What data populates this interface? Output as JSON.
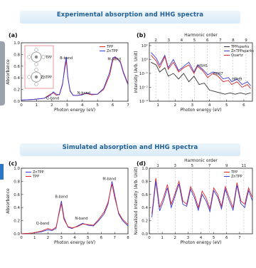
{
  "banners": {
    "top": "Experimental absorption and HHG spectra",
    "bottom": "Simulated absorption and HHG spectra"
  },
  "colors": {
    "red": "#d62728",
    "blue": "#3b3bd6",
    "black": "#333333",
    "banner_text": "#1f5f96"
  },
  "chart_data": [
    {
      "panel": "(a)",
      "type": "line",
      "xlabel": "Photon energy (eV)",
      "ylabel": "Absorbance",
      "xlim": [
        0,
        7
      ],
      "ylim": [
        0,
        1.0
      ],
      "xticks": [
        0,
        1,
        2,
        3,
        4,
        5,
        6,
        7
      ],
      "yticks": [
        0,
        0.2,
        0.4,
        0.6,
        0.8,
        1.0
      ],
      "grid": false,
      "legend_position": "top-right",
      "annotations": [
        {
          "text": "B-band",
          "x": 2.95,
          "y": 0.72
        },
        {
          "text": "Q-band",
          "x": 2.05,
          "y": 0.03
        },
        {
          "text": "N-band",
          "x": 4.1,
          "y": 0.12
        },
        {
          "text": "M-band",
          "x": 6.1,
          "y": 0.7
        }
      ],
      "inset_labels": [
        "TPP",
        "ZnTPP"
      ],
      "series": [
        {
          "name": "TPP",
          "color": "red",
          "x": [
            0,
            0.8,
            1.5,
            1.9,
            2.1,
            2.3,
            2.5,
            2.7,
            2.85,
            2.95,
            3.05,
            3.2,
            3.4,
            3.7,
            4.0,
            4.3,
            4.6,
            5.0,
            5.4,
            5.8,
            6.0,
            6.15,
            6.3,
            6.5,
            6.7,
            7.0
          ],
          "y": [
            0.02,
            0.03,
            0.05,
            0.12,
            0.14,
            0.1,
            0.12,
            0.3,
            0.55,
            0.7,
            0.4,
            0.18,
            0.1,
            0.1,
            0.12,
            0.13,
            0.11,
            0.12,
            0.2,
            0.45,
            0.7,
            0.75,
            0.72,
            0.68,
            0.5,
            0.3
          ]
        },
        {
          "name": "ZnTPP",
          "color": "blue",
          "x": [
            0,
            0.8,
            1.5,
            1.9,
            2.1,
            2.3,
            2.5,
            2.7,
            2.85,
            2.95,
            3.05,
            3.2,
            3.4,
            3.7,
            4.0,
            4.3,
            4.6,
            5.0,
            5.4,
            5.8,
            6.0,
            6.15,
            6.3,
            6.5,
            6.7,
            7.0
          ],
          "y": [
            0.02,
            0.03,
            0.05,
            0.1,
            0.16,
            0.12,
            0.11,
            0.28,
            0.6,
            0.76,
            0.42,
            0.17,
            0.1,
            0.1,
            0.11,
            0.14,
            0.12,
            0.12,
            0.22,
            0.5,
            0.74,
            0.76,
            0.73,
            0.66,
            0.48,
            0.28
          ]
        }
      ]
    },
    {
      "panel": "(b)",
      "type": "line",
      "top_axis_label": "Harmonic order",
      "top_ticks": [
        2,
        3,
        4,
        5,
        6,
        7,
        8,
        9
      ],
      "xlabel": "Photon energy (eV)",
      "ylabel": "Intensity (Arb. Unit)",
      "xlim": [
        0.5,
        6.5
      ],
      "ylim_log10": [
        -3,
        1.2
      ],
      "xticks": [
        1,
        2,
        3,
        4,
        5,
        6
      ],
      "yticks_labels": [
        "10⁻³",
        "10⁻²",
        "10⁻¹",
        "10⁰",
        "10¹"
      ],
      "yticks_log10": [
        -3,
        -2,
        -1,
        0,
        1
      ],
      "legend_position": "top-right",
      "annotations": [
        {
          "text": "H5H5",
          "x": 3.6,
          "y_log10": -0.55
        },
        {
          "text": "H6H7",
          "x": 4.5,
          "y_log10": -1.1
        },
        {
          "text": "H8H9",
          "x": 5.6,
          "y_log10": -1.5
        }
      ],
      "series": [
        {
          "name": "TPPsparks",
          "color": "black",
          "x": [
            0.6,
            0.9,
            1.1,
            1.4,
            1.6,
            1.9,
            2.2,
            2.5,
            2.8,
            3.1,
            3.4,
            3.7,
            4.0,
            4.3,
            4.6,
            4.9,
            5.2,
            5.5,
            5.8,
            6.1,
            6.4
          ],
          "y_log10": [
            -0.2,
            -0.4,
            -0.9,
            -0.6,
            -1.2,
            -1.0,
            -1.4,
            -1.0,
            -1.6,
            -1.2,
            -1.8,
            -1.7,
            -2.2,
            -2.3,
            -2.4,
            -2.5,
            -2.4,
            -2.5,
            -2.4,
            -2.5,
            -2.4
          ]
        },
        {
          "name": "ZnTPPsparks",
          "color": "blue",
          "x": [
            0.6,
            0.9,
            1.1,
            1.4,
            1.6,
            1.9,
            2.2,
            2.5,
            2.8,
            3.1,
            3.3,
            3.6,
            3.9,
            4.2,
            4.5,
            4.8,
            5.1,
            5.3,
            5.6,
            5.9,
            6.2,
            6.4
          ],
          "y_log10": [
            0.5,
            0.1,
            -0.4,
            0.3,
            -0.6,
            0.0,
            -0.8,
            -0.5,
            -0.2,
            -0.9,
            -0.4,
            -0.7,
            -1.1,
            -0.9,
            -1.0,
            -1.4,
            -1.3,
            -1.6,
            -1.4,
            -1.8,
            -1.6,
            -1.9
          ]
        },
        {
          "name": "Quartz",
          "color": "red",
          "x": [
            0.6,
            0.9,
            1.1,
            1.4,
            1.6,
            1.9,
            2.2,
            2.5,
            2.8,
            3.1,
            3.3,
            3.6,
            3.9,
            4.2,
            4.5,
            4.8,
            5.1,
            5.3,
            5.6,
            5.9,
            6.2,
            6.4
          ],
          "y_log10": [
            0.3,
            -0.1,
            -0.6,
            0.2,
            -0.7,
            -0.2,
            -0.9,
            -0.6,
            -0.4,
            -1.0,
            -0.5,
            -0.8,
            -1.3,
            -1.0,
            -1.2,
            -1.6,
            -1.5,
            -1.8,
            -1.6,
            -2.0,
            -1.8,
            -2.1
          ]
        }
      ]
    },
    {
      "panel": "(c)",
      "type": "line",
      "xlabel": "Photon energy (eV)",
      "ylabel": "Absorbance",
      "xlim": [
        0,
        8
      ],
      "ylim": [
        0,
        1.0
      ],
      "xticks": [
        0,
        1,
        2,
        3,
        4,
        5,
        6,
        7,
        8
      ],
      "yticks": [
        0,
        0.2,
        0.4,
        0.6,
        0.8,
        1.0
      ],
      "legend_position": "top-left",
      "annotations": [
        {
          "text": "B-band",
          "x": 3.0,
          "y": 0.55
        },
        {
          "text": "Q-band",
          "x": 1.6,
          "y": 0.14
        },
        {
          "text": "N-band",
          "x": 4.5,
          "y": 0.22
        },
        {
          "text": "M-band",
          "x": 6.6,
          "y": 0.82
        }
      ],
      "series": [
        {
          "name": "ZnTPP",
          "color": "blue",
          "x": [
            0,
            0.8,
            1.5,
            2.0,
            2.3,
            2.6,
            2.8,
            3.0,
            3.2,
            3.5,
            3.8,
            4.2,
            4.6,
            5.0,
            5.4,
            5.8,
            6.2,
            6.5,
            6.8,
            7.0,
            7.3,
            7.6,
            8.0
          ],
          "y": [
            0,
            0.01,
            0.03,
            0.06,
            0.05,
            0.08,
            0.3,
            0.5,
            0.25,
            0.1,
            0.08,
            0.12,
            0.16,
            0.13,
            0.12,
            0.2,
            0.3,
            0.45,
            0.8,
            0.6,
            0.3,
            0.2,
            0.12
          ]
        },
        {
          "name": "TPP",
          "color": "red",
          "x": [
            0,
            0.8,
            1.5,
            2.0,
            2.3,
            2.6,
            2.8,
            3.0,
            3.2,
            3.5,
            3.8,
            4.2,
            4.6,
            5.0,
            5.4,
            5.8,
            6.2,
            6.5,
            6.8,
            7.0,
            7.3,
            7.6,
            8.0
          ],
          "y": [
            0,
            0.01,
            0.04,
            0.08,
            0.06,
            0.1,
            0.28,
            0.46,
            0.22,
            0.11,
            0.09,
            0.11,
            0.15,
            0.14,
            0.13,
            0.22,
            0.33,
            0.48,
            0.76,
            0.55,
            0.32,
            0.22,
            0.14
          ]
        }
      ]
    },
    {
      "panel": "(d)",
      "type": "line",
      "top_axis_label": "Harmonic order",
      "top_ticks": [
        1,
        3,
        5,
        7,
        9,
        11
      ],
      "xlabel": "Photon energy (eV)",
      "ylabel": "Normalized Intensity (Arb. Unit)",
      "xlim": [
        0,
        8
      ],
      "ylim": [
        0,
        1.0
      ],
      "xticks": [
        0,
        1,
        2,
        3,
        4,
        5,
        6,
        7
      ],
      "yticks": [
        0,
        0.2,
        0.4,
        0.6,
        0.8,
        1.0
      ],
      "legend_position": "top-right",
      "series": [
        {
          "name": "TPP",
          "color": "red",
          "x": [
            0.2,
            0.5,
            0.8,
            1.1,
            1.4,
            1.7,
            2.0,
            2.3,
            2.6,
            2.9,
            3.2,
            3.5,
            3.8,
            4.1,
            4.4,
            4.7,
            5.0,
            5.3,
            5.6,
            5.9,
            6.2,
            6.5,
            6.8,
            7.1,
            7.4,
            7.7,
            8.0
          ],
          "y": [
            0.3,
            0.85,
            0.4,
            0.55,
            0.75,
            0.45,
            0.62,
            0.8,
            0.5,
            0.45,
            0.72,
            0.6,
            0.4,
            0.65,
            0.55,
            0.38,
            0.7,
            0.6,
            0.42,
            0.72,
            0.55,
            0.4,
            0.78,
            0.5,
            0.45,
            0.7,
            0.55
          ]
        },
        {
          "name": "ZnTPP",
          "color": "blue",
          "x": [
            0.2,
            0.5,
            0.8,
            1.1,
            1.4,
            1.7,
            2.0,
            2.3,
            2.6,
            2.9,
            3.2,
            3.5,
            3.8,
            4.1,
            4.4,
            4.7,
            5.0,
            5.3,
            5.6,
            5.9,
            6.2,
            6.5,
            6.8,
            7.1,
            7.4,
            7.7,
            8.0
          ],
          "y": [
            0.25,
            0.8,
            0.35,
            0.5,
            0.7,
            0.4,
            0.58,
            0.76,
            0.45,
            0.42,
            0.68,
            0.55,
            0.36,
            0.6,
            0.5,
            0.34,
            0.66,
            0.56,
            0.38,
            0.68,
            0.5,
            0.36,
            0.74,
            0.46,
            0.4,
            0.66,
            0.5
          ]
        }
      ]
    }
  ]
}
